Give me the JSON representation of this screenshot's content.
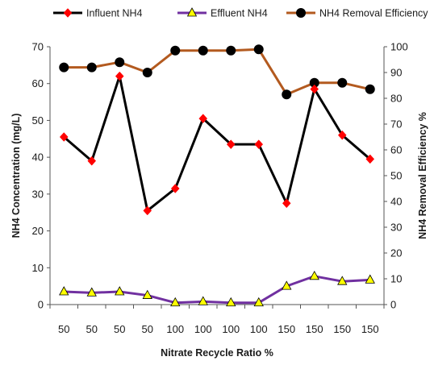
{
  "chart_data": {
    "type": "line",
    "categories": [
      "50",
      "50",
      "50",
      "50",
      "100",
      "100",
      "100",
      "100",
      "150",
      "150",
      "150",
      "150"
    ],
    "xlabel": "Nitrate Recycle  Ratio %",
    "ylabel": "NH4  Concentration  (mg/L)",
    "y2label": "NH4  Removal  Efficiency  %",
    "ylim": [
      0,
      70
    ],
    "y2lim": [
      0,
      100
    ],
    "yticks": [
      0,
      10,
      20,
      30,
      40,
      50,
      60,
      70
    ],
    "y2ticks": [
      0,
      10,
      20,
      30,
      40,
      50,
      60,
      70,
      80,
      90,
      100
    ],
    "grid": false,
    "legend_position": "top",
    "series": [
      {
        "name": "Influent NH4",
        "axis": "left",
        "line_color": "#000000",
        "marker": "diamond",
        "marker_color": "#ff0000",
        "values": [
          45.5,
          39.0,
          62.0,
          25.5,
          31.5,
          50.5,
          43.5,
          43.5,
          27.5,
          58.5,
          46.0,
          39.5
        ]
      },
      {
        "name": "Effluent NH4",
        "axis": "left",
        "line_color": "#7030a0",
        "marker": "triangle",
        "marker_color": "#ffff00",
        "values": [
          3.5,
          3.2,
          3.5,
          2.5,
          0.5,
          0.8,
          0.5,
          0.5,
          5.0,
          7.7,
          6.3,
          6.7
        ]
      },
      {
        "name": "NH4 Removal Efficiency",
        "axis": "right",
        "line_color": "#b35a1f",
        "marker": "circle",
        "marker_color": "#000000",
        "values": [
          92,
          92,
          94,
          90,
          98.5,
          98.5,
          98.5,
          99,
          81.5,
          86,
          86,
          83.5
        ]
      }
    ]
  }
}
